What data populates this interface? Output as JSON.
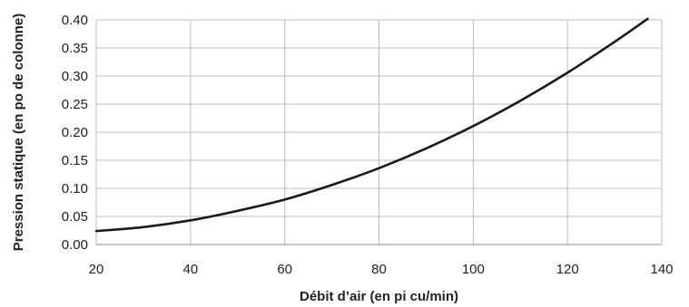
{
  "chart_data": {
    "type": "line",
    "title": "",
    "xlabel": "Débit d’air (en pi cu/min)",
    "ylabel": "Pression statique (en  po de colonne)",
    "xlim": [
      20,
      140
    ],
    "ylim": [
      0,
      0.4
    ],
    "x_ticks": [
      20,
      40,
      60,
      80,
      100,
      120,
      140
    ],
    "x_tick_labels": [
      "20",
      "40",
      "60",
      "80",
      "100",
      "120",
      "140"
    ],
    "y_ticks": [
      0,
      0.05,
      0.1,
      0.15,
      0.2,
      0.25,
      0.3,
      0.35,
      0.4
    ],
    "y_tick_labels": [
      "0.00",
      "0.05",
      "0.10",
      "0.15",
      "0.20",
      "0.25",
      "0.30",
      "0.35",
      "0.40"
    ],
    "grid": true,
    "legend": "none",
    "series": [
      {
        "color": "#1a1a1a",
        "x": [
          20,
          30,
          40,
          50,
          60,
          70,
          80,
          90,
          100,
          110,
          120,
          130,
          137
        ],
        "y": [
          0.024,
          0.031,
          0.043,
          0.06,
          0.08,
          0.106,
          0.136,
          0.171,
          0.211,
          0.256,
          0.306,
          0.361,
          0.402
        ]
      }
    ]
  }
}
